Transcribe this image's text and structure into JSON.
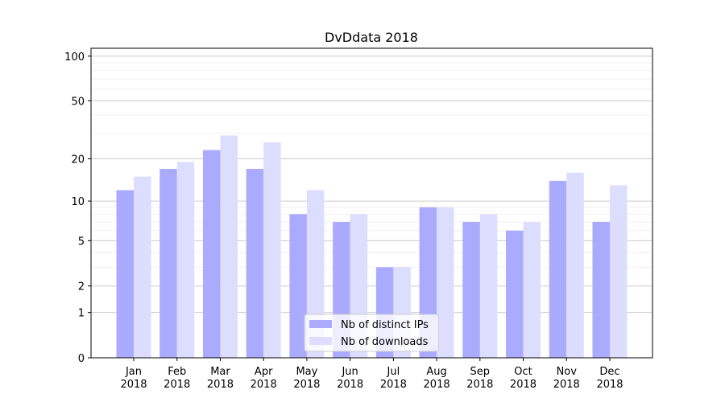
{
  "chart_data": {
    "type": "bar",
    "title": "DvDdata 2018",
    "xlabel": "",
    "ylabel": "",
    "yscale": "log(1+y)",
    "ylim": [
      0,
      113
    ],
    "yticks": [
      0,
      1,
      2,
      5,
      10,
      20,
      50,
      100
    ],
    "grid": true,
    "legend_position": "bottom-center",
    "categories": [
      "Jan\n2018",
      "Feb\n2018",
      "Mar\n2018",
      "Apr\n2018",
      "May\n2018",
      "Jun\n2018",
      "Jul\n2018",
      "Aug\n2018",
      "Sep\n2018",
      "Oct\n2018",
      "Nov\n2018",
      "Dec\n2018"
    ],
    "series": [
      {
        "name": "Nb of distinct IPs",
        "color": "#aaaaff",
        "values": [
          12,
          17,
          23,
          17,
          8,
          7,
          3,
          9,
          7,
          6,
          14,
          7
        ]
      },
      {
        "name": "Nb of downloads",
        "color": "#ddddff",
        "values": [
          15,
          19,
          29,
          26,
          12,
          8,
          3,
          9,
          8,
          7,
          16,
          13
        ]
      }
    ]
  }
}
